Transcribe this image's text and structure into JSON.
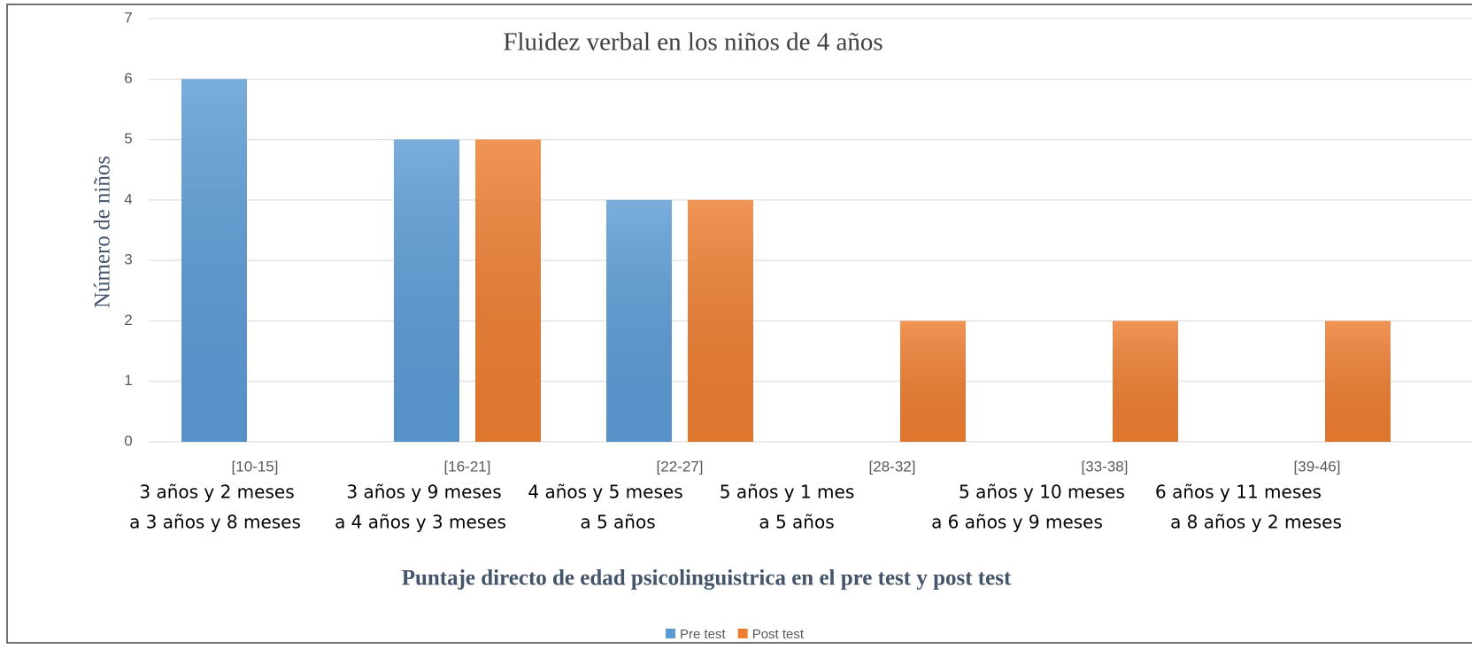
{
  "chart_data": {
    "type": "bar",
    "title": "Fluidez verbal en los niños de 4 años",
    "ylabel": "Número de niños",
    "xlabel": "Puntaje directo de edad psicolinguistrica en el pre test y post  test",
    "categories": [
      "[10-15]",
      "[16-21]",
      "[22-27]",
      "[28-32]",
      "[33-38]",
      "[39-46]"
    ],
    "age_labels": [
      [
        "3 años y 2 meses",
        "a 3 años y 8 meses"
      ],
      [
        "3 años y 9 meses",
        "a 4 años y 3 meses"
      ],
      [
        "4 años y 5 meses",
        "a 5 años"
      ],
      [
        "5 años y 1 mes",
        "a 5 años"
      ],
      [
        "5 años y 10 meses",
        "a 6 años y 9 meses"
      ],
      [
        "6 años y 11 meses",
        "a 8 años y 2 meses"
      ]
    ],
    "series": [
      {
        "name": "Pre test",
        "color": "#5b9bd5",
        "values": [
          6,
          5,
          4,
          0,
          0,
          0
        ]
      },
      {
        "name": "Post test",
        "color": "#ed7d31",
        "values": [
          0,
          5,
          4,
          2,
          2,
          2
        ]
      }
    ],
    "ylim": [
      0,
      7
    ],
    "yticks": [
      0,
      1,
      2,
      3,
      4,
      5,
      6,
      7
    ],
    "grid": true,
    "legend": "bottom"
  }
}
